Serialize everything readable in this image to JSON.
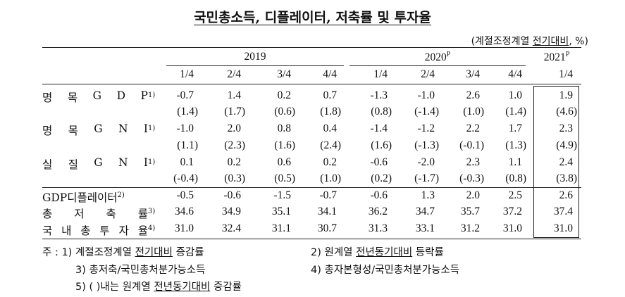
{
  "title": "국민총소득, 디플레이터, 저축률 및 투자율",
  "unit": {
    "prefix": "(계절조정계열 ",
    "underlined": "전기대비",
    "suffix": ", %)"
  },
  "years": [
    {
      "label": "2019",
      "sup": ""
    },
    {
      "label": "2020",
      "sup": "P"
    },
    {
      "label": "2021",
      "sup": "P"
    }
  ],
  "quarters": [
    "1/4",
    "2/4",
    "3/4",
    "4/4",
    "1/4",
    "2/4",
    "3/4",
    "4/4",
    "1/4"
  ],
  "rows": [
    {
      "chars": [
        "명",
        "목",
        "G",
        "D",
        "P"
      ],
      "sup": "1)",
      "values": [
        "-0.7",
        "1.4",
        "0.2",
        "0.7",
        "-1.3",
        "-1.0",
        "2.6",
        "1.0",
        "1.9"
      ],
      "sub": [
        "(1.4)",
        "(1.7)",
        "(0.6)",
        "(1.8)",
        "(0.8)",
        "(-1.4)",
        "(1.0)",
        "(1.4)",
        "(4.6)"
      ]
    },
    {
      "chars": [
        "명",
        "목",
        "G",
        "N",
        "I"
      ],
      "sup": "1)",
      "values": [
        "-1.0",
        "2.0",
        "0.8",
        "0.4",
        "-1.4",
        "-1.2",
        "2.2",
        "1.7",
        "2.3"
      ],
      "sub": [
        "(1.1)",
        "(2.3)",
        "(1.6)",
        "(2.4)",
        "(1.6)",
        "(-1.3)",
        "(-0.1)",
        "(1.3)",
        "(4.9)"
      ]
    },
    {
      "chars": [
        "실",
        "질",
        "G",
        "N",
        "I"
      ],
      "sup": "1)",
      "values": [
        "0.1",
        "0.2",
        "0.6",
        "0.2",
        "-0.6",
        "-2.0",
        "2.3",
        "1.1",
        "2.4"
      ],
      "sub": [
        "(-0.4)",
        "(0.3)",
        "(0.5)",
        "(1.0)",
        "(0.2)",
        "(-1.7)",
        "(-0.3)",
        "(0.8)",
        "(3.8)"
      ]
    },
    {
      "label": "GDP디플레이터",
      "sup": "2)",
      "values": [
        "-0.5",
        "-0.6",
        "-1.5",
        "-0.7",
        "-0.6",
        "1.3",
        "2.0",
        "2.5",
        "2.6"
      ]
    },
    {
      "chars": [
        "총",
        "저",
        "축",
        "률"
      ],
      "sup": "3)",
      "values": [
        "34.6",
        "34.9",
        "35.1",
        "34.1",
        "36.2",
        "34.7",
        "35.7",
        "37.2",
        "37.4"
      ]
    },
    {
      "chars": [
        "국",
        "내",
        "총",
        "투",
        "자",
        "율"
      ],
      "sup": "4)",
      "values": [
        "31.0",
        "32.4",
        "31.1",
        "30.7",
        "31.3",
        "33.1",
        "31.2",
        "31.0",
        "31.0"
      ]
    }
  ],
  "notes": {
    "n1_prefix": "주 : 1) 계절조정계열 ",
    "n1_underlined": "전기대비",
    "n1_suffix": " 증감률",
    "n2_prefix": "2) 원계열 ",
    "n2_underlined": "전년동기대비",
    "n2_suffix": " 등락률",
    "n3": "3) 총저축/국민총처분가능소득",
    "n4": "4) 총자본형성/국민총처분가능소득",
    "n5_prefix": "5) (   )내는 원계열 ",
    "n5_underlined": "전년동기대비",
    "n5_suffix": " 증감률"
  }
}
